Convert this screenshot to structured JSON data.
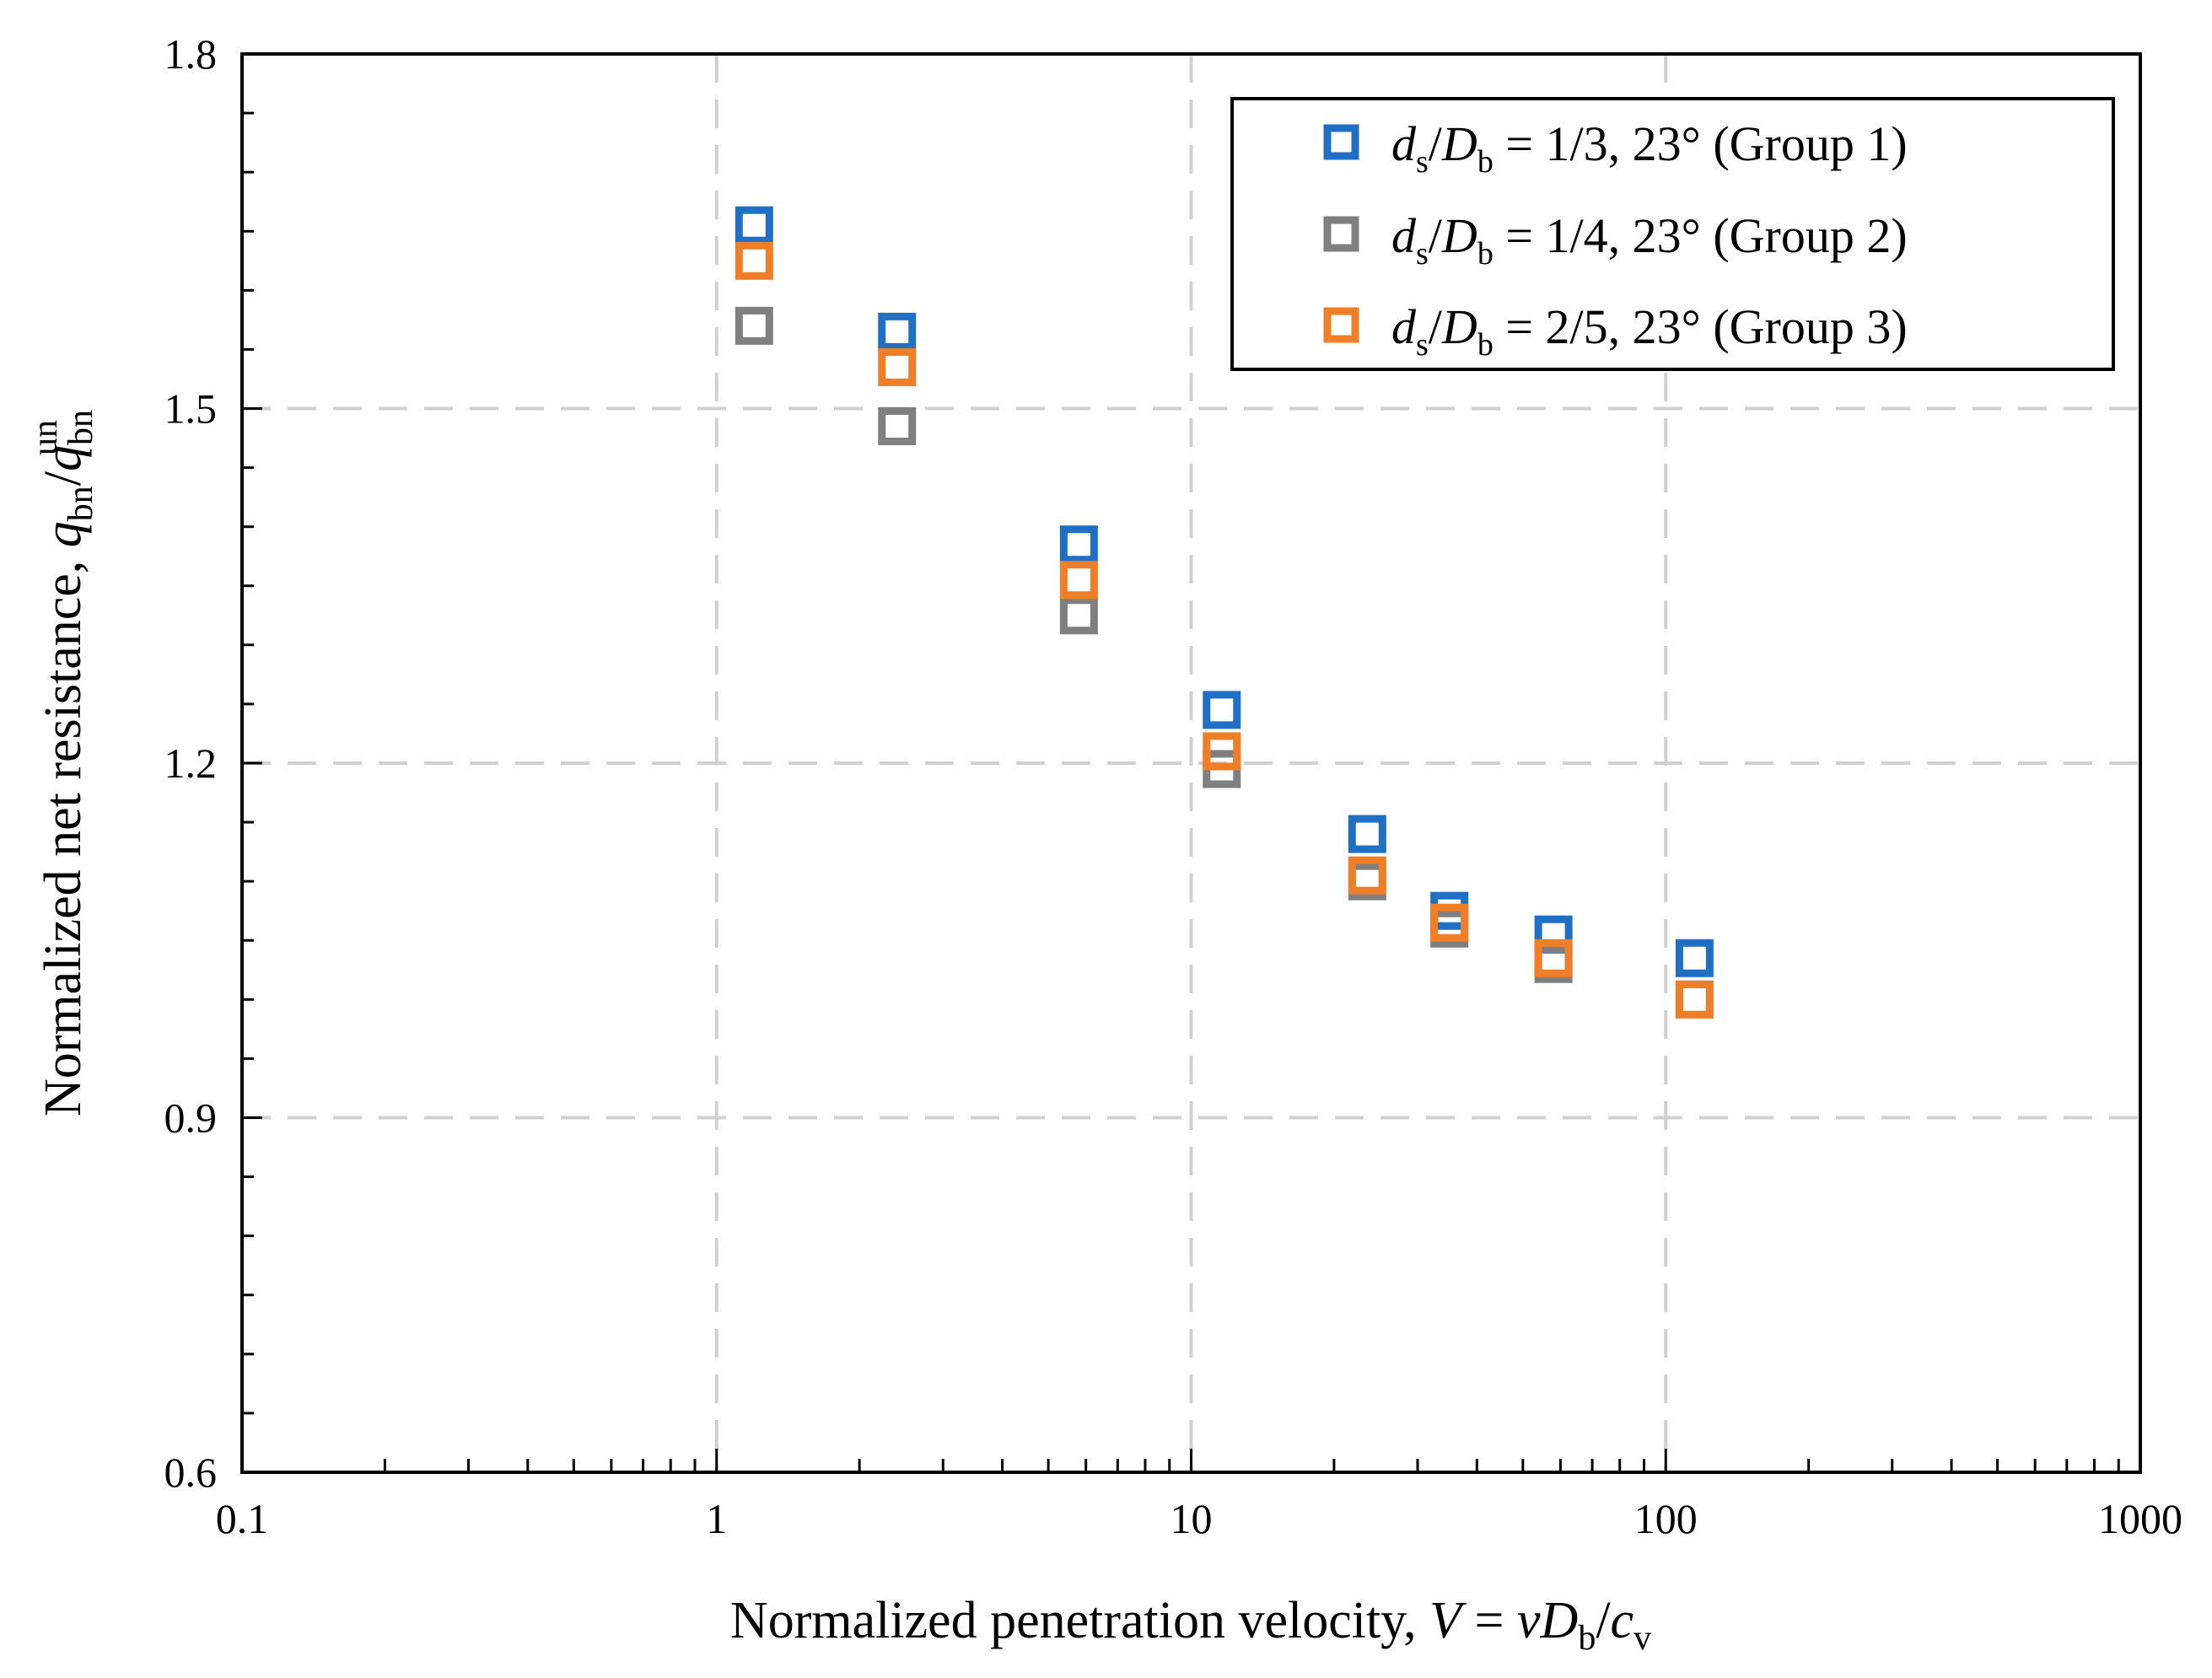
{
  "chart_data": {
    "type": "scatter",
    "title": "",
    "x_scale": "log",
    "xlim": [
      0.1,
      1000
    ],
    "ylim": [
      0.6,
      1.8
    ],
    "grid": true,
    "legend_position": "top-right",
    "xlabel": {
      "prefix": "Normalized penetration velocity, ",
      "V": "V",
      "eq": " = ",
      "v": "v",
      "D": "D",
      "b": "b",
      "slash": "/",
      "c": "c",
      "csub": "v"
    },
    "ylabel": {
      "prefix": "Normalized net resistance, ",
      "q1": "q",
      "sub1": "bn",
      "slash": "/",
      "q2": "q",
      "sub2": "bn",
      "sup2": "un"
    },
    "x_ticks": [
      {
        "value": 0.1,
        "label": "0.1"
      },
      {
        "value": 1,
        "label": "1"
      },
      {
        "value": 10,
        "label": "10"
      },
      {
        "value": 100,
        "label": "100"
      },
      {
        "value": 1000,
        "label": "1000"
      }
    ],
    "y_ticks": [
      {
        "value": 0.6,
        "label": "0.6"
      },
      {
        "value": 0.9,
        "label": "0.9"
      },
      {
        "value": 1.2,
        "label": "1.2"
      },
      {
        "value": 1.5,
        "label": "1.5"
      },
      {
        "value": 1.8,
        "label": "1.8"
      }
    ],
    "series": [
      {
        "name": "Group 1",
        "color": "#1F6FC5",
        "legend": {
          "d": "d",
          "ds": "s",
          "slash": "/",
          "D": "D",
          "Ds": "b",
          "rest": " = 1/3, 23° (Group 1)"
        },
        "x": [
          1.2,
          2.4,
          5.8,
          11.6,
          23.5,
          35,
          58,
          115
        ],
        "y": [
          1.655,
          1.565,
          1.385,
          1.245,
          1.14,
          1.075,
          1.055,
          1.035
        ]
      },
      {
        "name": "Group 2",
        "color": "#7F7F7F",
        "legend": {
          "d": "d",
          "ds": "s",
          "slash": "/",
          "D": "D",
          "Ds": "b",
          "rest": " = 1/4, 23° (Group 2)"
        },
        "x": [
          1.2,
          2.4,
          5.8,
          11.6,
          23.5,
          35,
          58,
          115
        ],
        "y": [
          1.57,
          1.485,
          1.325,
          1.195,
          1.1,
          1.06,
          1.03,
          1.0
        ]
      },
      {
        "name": "Group 3",
        "color": "#F07E26",
        "legend": {
          "d": "d",
          "ds": "s",
          "slash": "/",
          "D": "D",
          "Ds": "b",
          "rest": " = 2/5, 23° (Group 3)"
        },
        "x": [
          1.2,
          2.4,
          5.8,
          11.6,
          23.5,
          35,
          58,
          115
        ],
        "y": [
          1.625,
          1.535,
          1.355,
          1.21,
          1.105,
          1.065,
          1.035,
          1.0
        ]
      }
    ]
  }
}
